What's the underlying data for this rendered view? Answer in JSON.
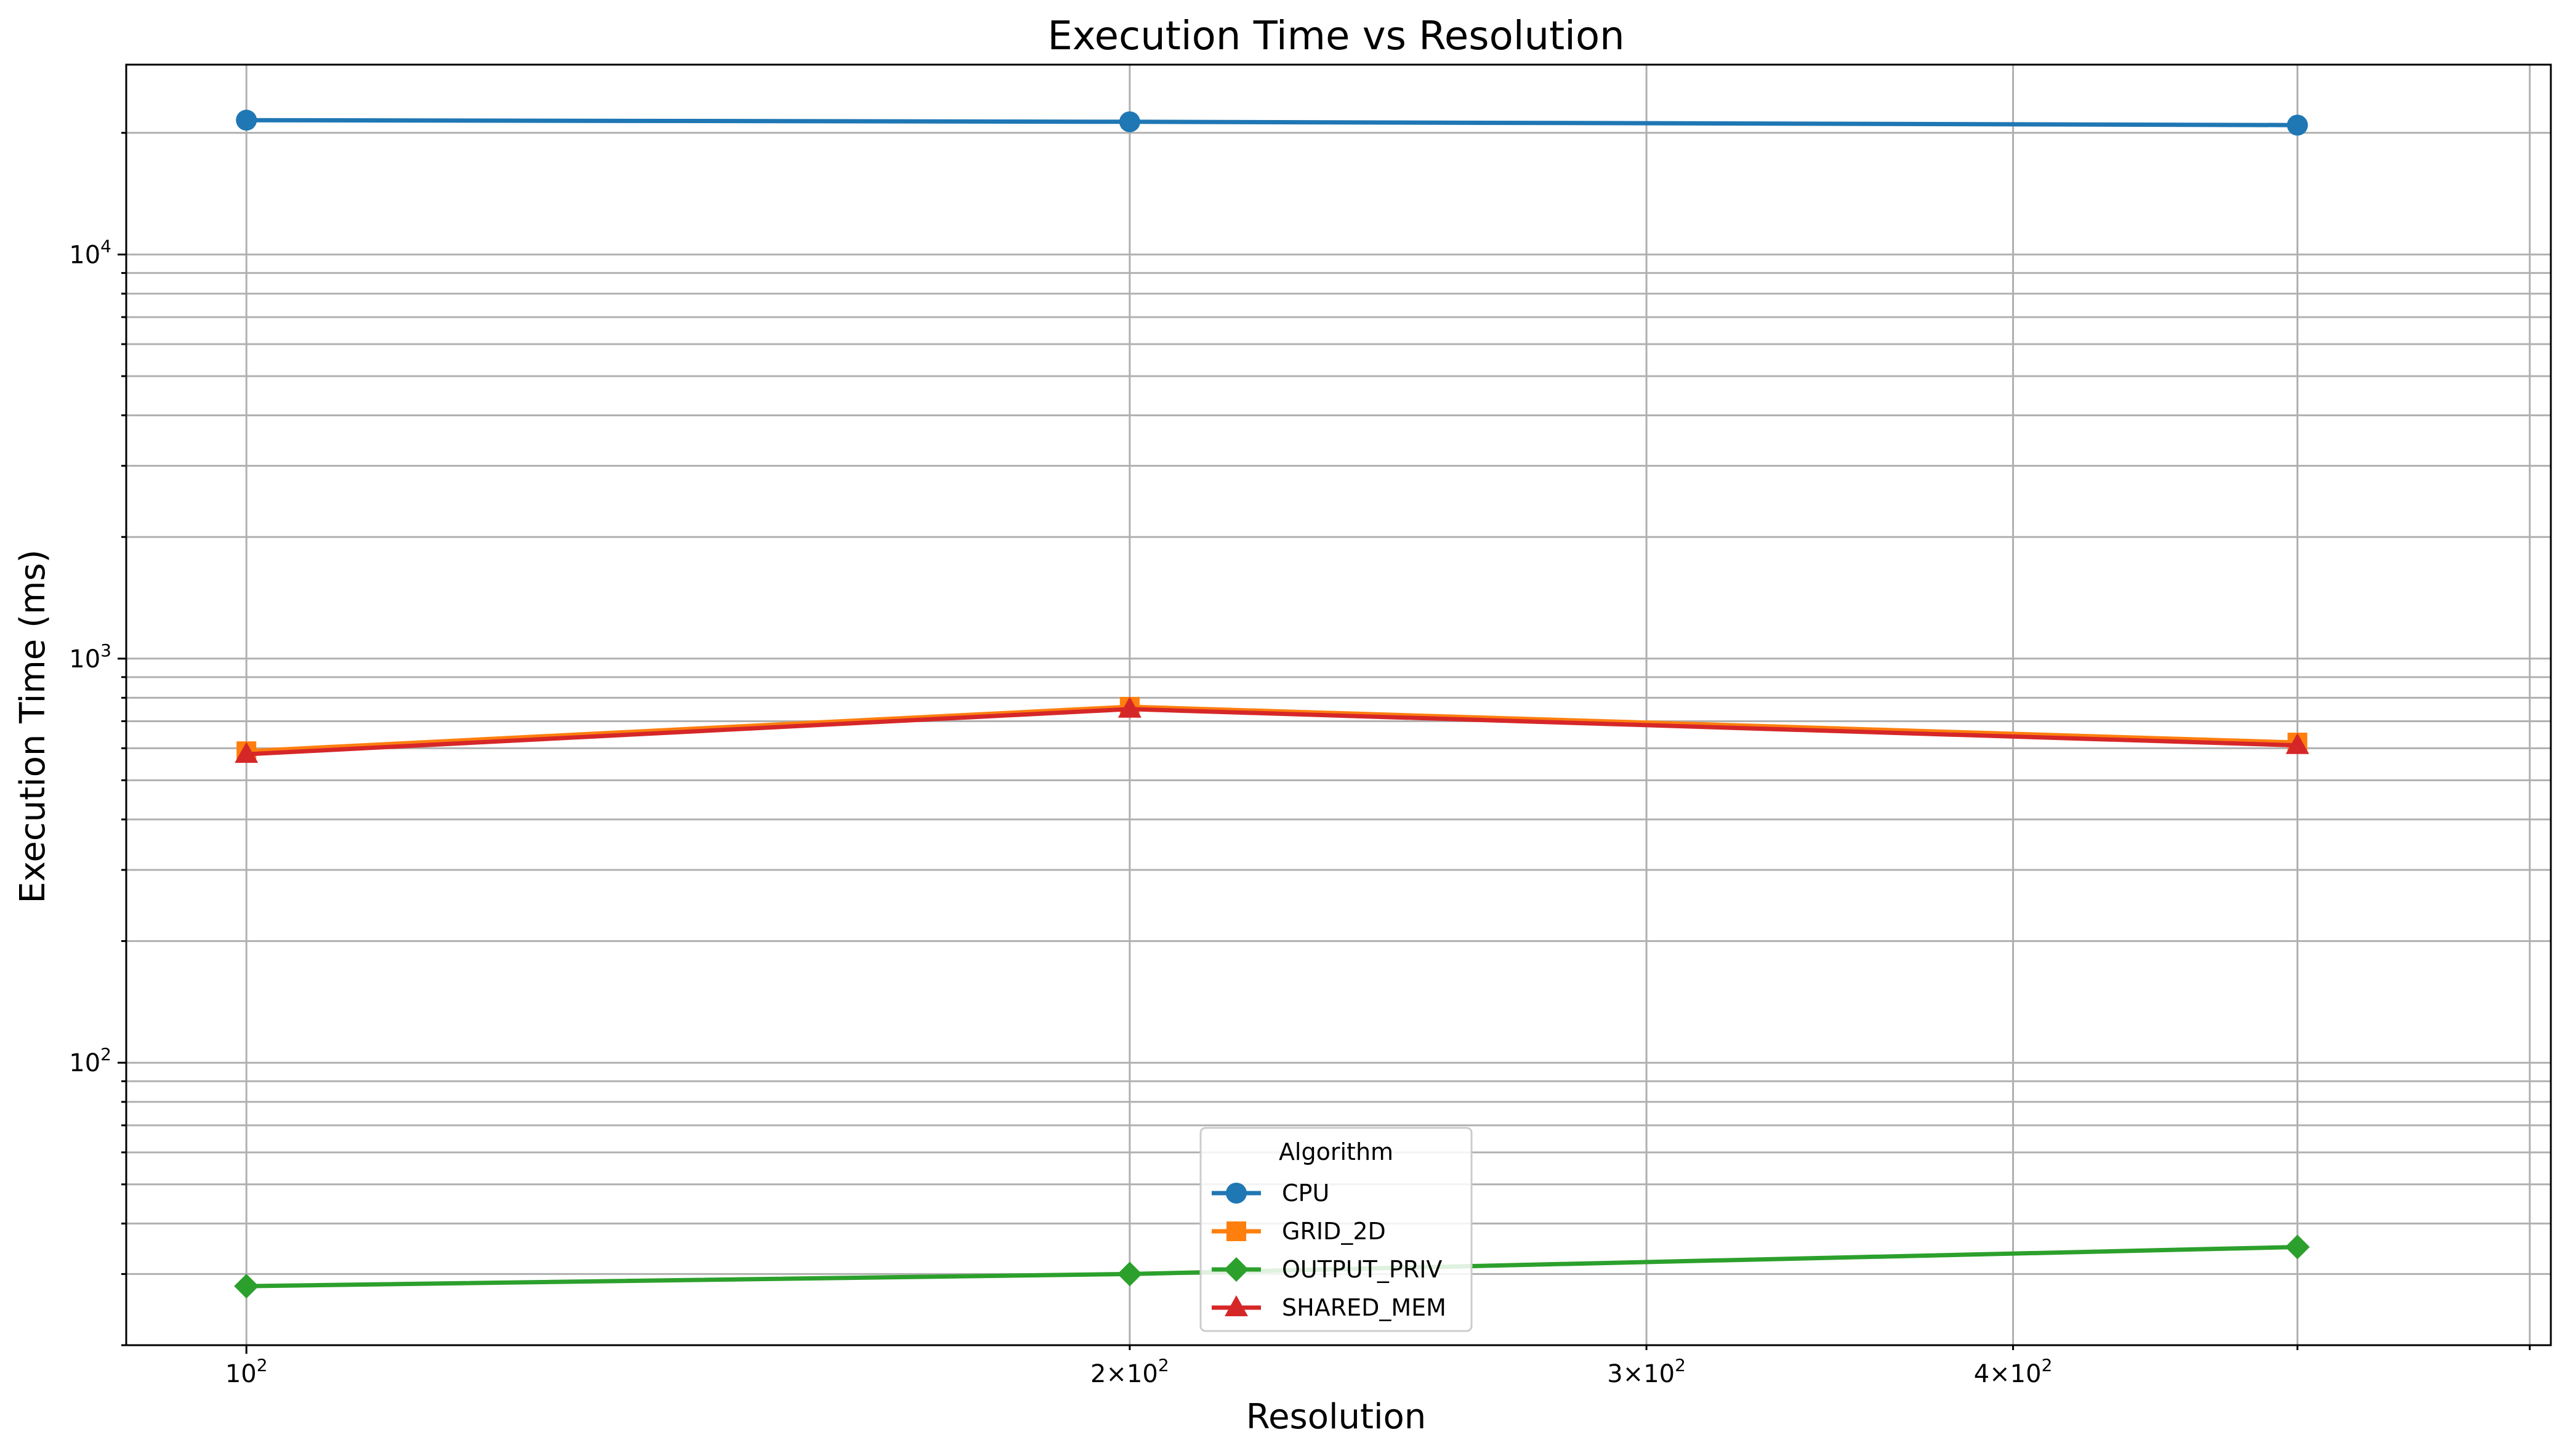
{
  "chart_data": {
    "type": "line",
    "title": "Execution Time vs Resolution",
    "xlabel": "Resolution",
    "ylabel": "Execution Time (ms)",
    "xscale": "log",
    "yscale": "log",
    "xlim": [
      91,
      610
    ],
    "ylim": [
      20,
      29500
    ],
    "grid": "on (major and minor)",
    "x": [
      100,
      200,
      500
    ],
    "x_ticks": [
      {
        "value": 100,
        "base": "10",
        "exp": "2"
      },
      {
        "value": 200,
        "base": "2×10",
        "exp": "2"
      },
      {
        "value": 300,
        "base": "3×10",
        "exp": "2"
      },
      {
        "value": 400,
        "base": "4×10",
        "exp": "2"
      }
    ],
    "y_ticks": [
      {
        "value": 100,
        "base": "10",
        "exp": "2"
      },
      {
        "value": 1000,
        "base": "10",
        "exp": "3"
      },
      {
        "value": 10000,
        "base": "10",
        "exp": "4"
      }
    ],
    "legend": {
      "title": "Algorithm",
      "placement": "lower center"
    },
    "series": [
      {
        "name": "CPU",
        "values": [
          21500,
          21300,
          20900
        ],
        "color": "#1f77b4",
        "marker": "circle"
      },
      {
        "name": "GRID_2D",
        "values": [
          590,
          760,
          620
        ],
        "color": "#ff7f0e",
        "marker": "square"
      },
      {
        "name": "OUTPUT_PRIV",
        "values": [
          28,
          30,
          35
        ],
        "color": "#2ca02c",
        "marker": "diamond"
      },
      {
        "name": "SHARED_MEM",
        "values": [
          580,
          750,
          610
        ],
        "color": "#d62728",
        "marker": "triangle"
      }
    ]
  }
}
